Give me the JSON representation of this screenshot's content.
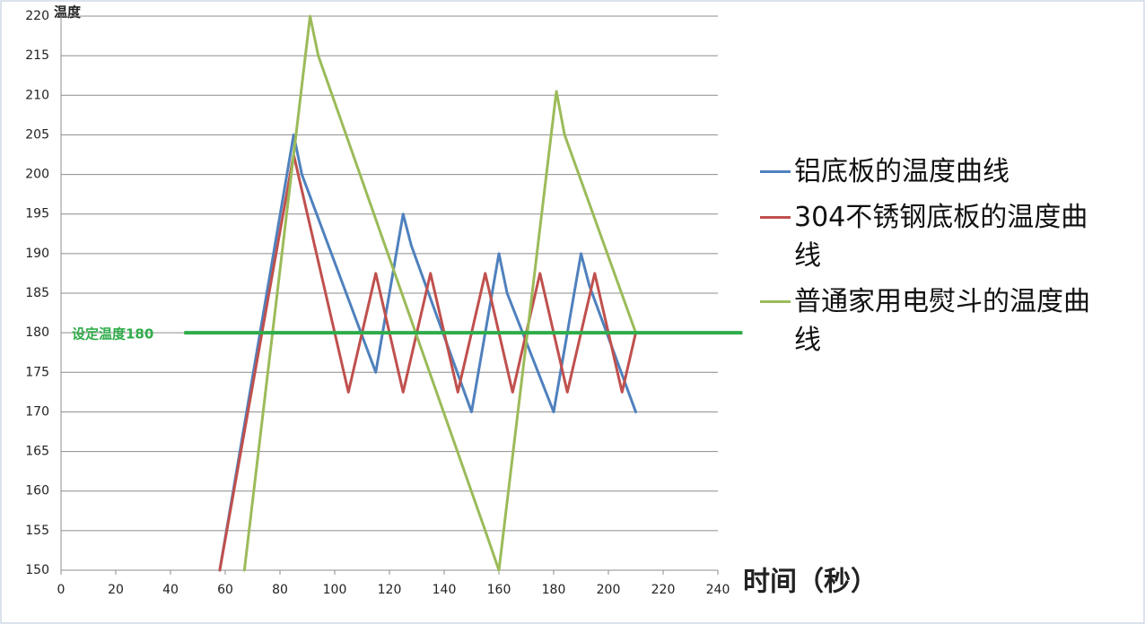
{
  "chart_data": {
    "type": "line",
    "y_title": "温度",
    "x_title": "时间（秒）",
    "xlim": [
      0,
      240
    ],
    "xticks": [
      0,
      20,
      40,
      60,
      80,
      100,
      120,
      140,
      160,
      180,
      200,
      220,
      240
    ],
    "ylim": [
      150,
      220
    ],
    "yticks": [
      150,
      155,
      160,
      165,
      170,
      175,
      180,
      185,
      190,
      195,
      200,
      205,
      210,
      215,
      220
    ],
    "grid": true,
    "legend": "right",
    "series": [
      {
        "name": "铝底板的温度曲线",
        "color": "#4f81bd",
        "x": [
          58,
          85,
          88,
          115,
          125,
          128,
          150,
          160,
          163,
          180,
          190,
          193,
          210
        ],
        "values": [
          150,
          205,
          200,
          175,
          195,
          191,
          170,
          190,
          185,
          170,
          190,
          186,
          170
        ]
      },
      {
        "name": "304不锈钢底板的温度曲线",
        "color": "#c0504d",
        "x": [
          58,
          85,
          105,
          115,
          125,
          135,
          145,
          155,
          165,
          175,
          185,
          195,
          205,
          210
        ],
        "values": [
          150,
          202.5,
          172.5,
          187.5,
          172.5,
          187.5,
          172.5,
          187.5,
          172.5,
          187.5,
          172.5,
          187.5,
          172.5,
          180
        ]
      },
      {
        "name": "普通家用电熨斗的温度曲线",
        "color": "#9bbb59",
        "x": [
          67,
          91,
          94,
          155,
          160,
          181,
          184,
          210
        ],
        "values": [
          150,
          220,
          215,
          155,
          150,
          210.5,
          205,
          180
        ]
      }
    ],
    "set_line": {
      "label": "设定温度180",
      "value": 180,
      "x": [
        45,
        249
      ],
      "color": "#2eac4a"
    }
  }
}
